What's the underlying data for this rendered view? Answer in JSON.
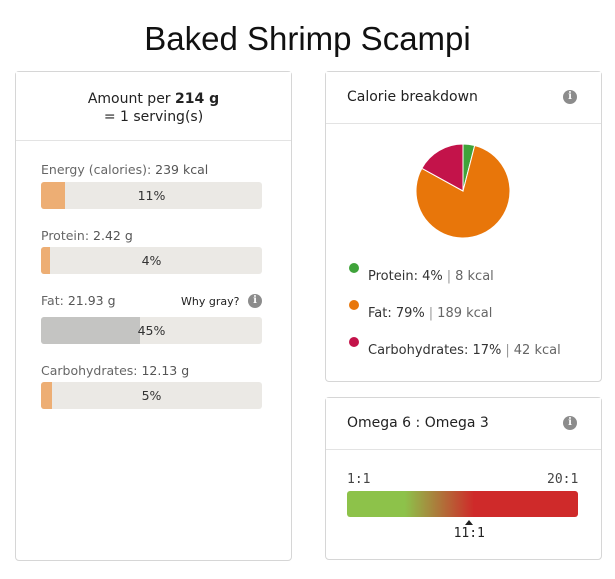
{
  "title": "Baked Shrimp Scampi",
  "nutrition": {
    "amount_prefix": "Amount per ",
    "amount_bold": "214 g",
    "serving": "= 1 serving(s)",
    "why_gray": "Why gray?",
    "items": [
      {
        "label": "Energy (calories):",
        "value": "239 kcal",
        "pct_text": "11%",
        "pct": 11
      },
      {
        "label": "Protein:",
        "value": "2.42 g",
        "pct_text": "4%",
        "pct": 4
      },
      {
        "label": "Fat:",
        "value": "21.93 g",
        "pct_text": "45%",
        "pct": 45
      },
      {
        "label": "Carbohydrates:",
        "value": "12.13 g",
        "pct_text": "5%",
        "pct": 5
      }
    ]
  },
  "calorie_breakdown": {
    "title": "Calorie breakdown",
    "slices": [
      {
        "name": "Protein:",
        "pct_text": "4%",
        "kcal": "8 kcal",
        "value": 4,
        "color": "#3fa33a"
      },
      {
        "name": "Fat:",
        "pct_text": "79%",
        "kcal": "189 kcal",
        "value": 79,
        "color": "#e8760a"
      },
      {
        "name": "Carbohydrates:",
        "pct_text": "17%",
        "kcal": "42 kcal",
        "value": 17,
        "color": "#c3134a"
      }
    ]
  },
  "omega": {
    "title": "Omega 6 : Omega 3",
    "min_label": "1:1",
    "max_label": "20:1",
    "value_label": "11:1",
    "value": 11,
    "min": 1,
    "max": 20
  },
  "colors": {
    "bar_fill": "#edae74",
    "bar_gray": "#c4c4c2",
    "bar_bg": "#ebe9e5",
    "omega_green": "#8dc24a",
    "omega_red": "#cf2a2a"
  }
}
